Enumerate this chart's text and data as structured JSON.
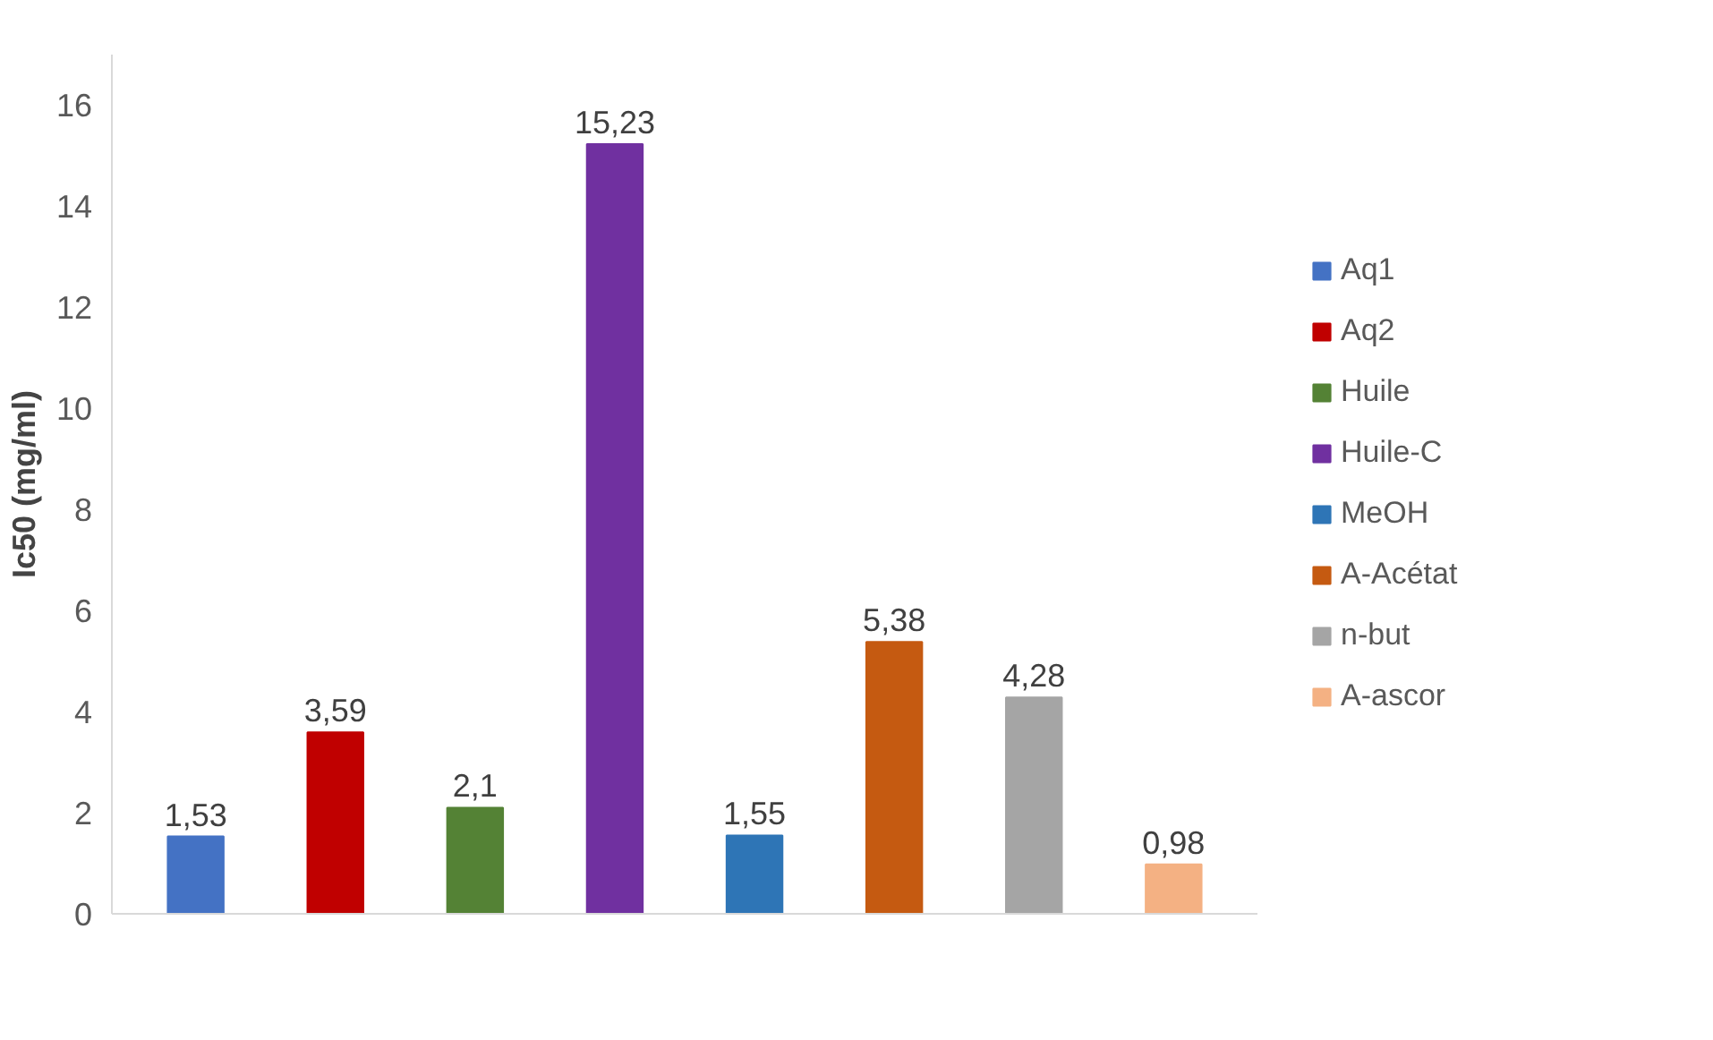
{
  "chart_data": {
    "type": "bar",
    "ylabel": "Ic50 (mg/ml)",
    "categories": [
      null,
      null,
      null,
      null,
      null,
      null,
      null,
      null
    ],
    "ylim": [
      0,
      17
    ],
    "yticks": [
      0,
      2,
      4,
      6,
      8,
      10,
      12,
      14,
      16
    ],
    "grid": false,
    "legend": "right",
    "series": [
      {
        "name": "Aq1",
        "color": "#4472c4",
        "values": [
          1.53,
          null,
          null,
          null,
          null,
          null,
          null,
          null
        ],
        "value_labels": [
          "1,53",
          null,
          null,
          null,
          null,
          null,
          null,
          null
        ]
      },
      {
        "name": "Aq2",
        "color": "#c00000",
        "values": [
          null,
          3.59,
          null,
          null,
          null,
          null,
          null,
          null
        ],
        "value_labels": [
          null,
          "3,59",
          null,
          null,
          null,
          null,
          null,
          null
        ]
      },
      {
        "name": "Huile",
        "color": "#548235",
        "values": [
          null,
          null,
          2.1,
          null,
          null,
          null,
          null,
          null
        ],
        "value_labels": [
          null,
          null,
          "2,1",
          null,
          null,
          null,
          null,
          null
        ]
      },
      {
        "name": "Huile-C",
        "color": "#7030a0",
        "values": [
          null,
          null,
          null,
          15.23,
          null,
          null,
          null,
          null
        ],
        "value_labels": [
          null,
          null,
          null,
          "15,23",
          null,
          null,
          null,
          null
        ]
      },
      {
        "name": "MeOH",
        "color": "#2e75b6",
        "values": [
          null,
          null,
          null,
          null,
          1.55,
          null,
          null,
          null
        ],
        "value_labels": [
          null,
          null,
          null,
          null,
          "1,55",
          null,
          null,
          null
        ]
      },
      {
        "name": "A-Acétat",
        "color": "#c55a11",
        "values": [
          null,
          null,
          null,
          null,
          null,
          5.38,
          null,
          null
        ],
        "value_labels": [
          null,
          null,
          null,
          null,
          null,
          "5,38",
          null,
          null
        ]
      },
      {
        "name": "n-but",
        "color": "#a5a5a5",
        "values": [
          null,
          null,
          null,
          null,
          null,
          null,
          4.28,
          null
        ],
        "value_labels": [
          null,
          null,
          null,
          null,
          null,
          null,
          "4,28",
          null
        ]
      },
      {
        "name": "A-ascor",
        "color": "#f4b183",
        "values": [
          null,
          null,
          null,
          null,
          null,
          null,
          null,
          0.98
        ],
        "value_labels": [
          null,
          null,
          null,
          null,
          null,
          null,
          null,
          "0,98"
        ]
      }
    ]
  }
}
